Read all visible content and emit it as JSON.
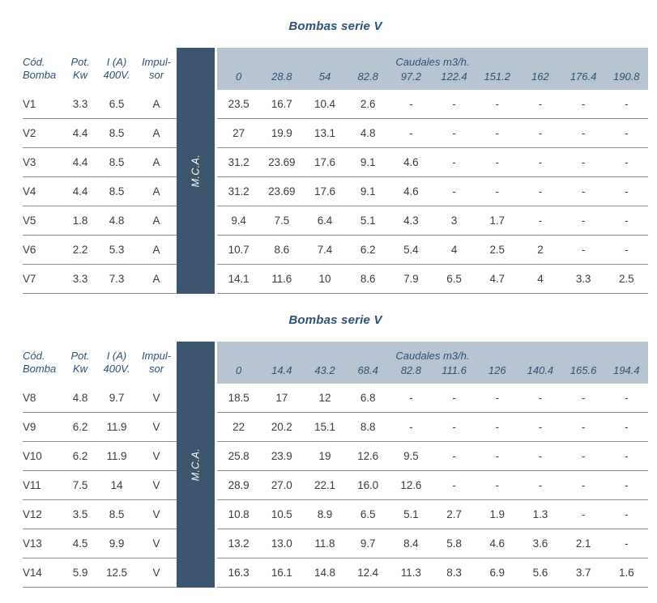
{
  "colors": {
    "accent_blue": "#2d5276",
    "dark_column": "#3c566e",
    "header_band": "#b7c4d1",
    "row_line": "#8f8f8f",
    "cell_text": "#3c3c3c"
  },
  "tables": [
    {
      "title": "Bombas serie V",
      "left_headers": [
        [
          "Cód.",
          "Bomba"
        ],
        [
          "Pot.",
          "Kw"
        ],
        [
          "I (A)",
          "400V."
        ],
        [
          "Impul-",
          "sor"
        ]
      ],
      "vertical_label": "M.C.A.",
      "flow_header": "Caudales m3/h.",
      "flow_columns": [
        "0",
        "28.8",
        "54",
        "82.8",
        "97.2",
        "122.4",
        "151.2",
        "162",
        "176.4",
        "190.8"
      ],
      "rows": [
        {
          "code": "V1",
          "power_kw": "3.3",
          "current_a": "6.5",
          "impeller": "A",
          "values": [
            "23.5",
            "16.7",
            "10.4",
            "2.6",
            "-",
            "-",
            "-",
            "-",
            "-",
            "-"
          ]
        },
        {
          "code": "V2",
          "power_kw": "4.4",
          "current_a": "8.5",
          "impeller": "A",
          "values": [
            "27",
            "19.9",
            "13.1",
            "4.8",
            "-",
            "-",
            "-",
            "-",
            "-",
            "-"
          ]
        },
        {
          "code": "V3",
          "power_kw": "4.4",
          "current_a": "8.5",
          "impeller": "A",
          "values": [
            "31.2",
            "23.69",
            "17.6",
            "9.1",
            "4.6",
            "-",
            "-",
            "-",
            "-",
            "-"
          ]
        },
        {
          "code": "V4",
          "power_kw": "4.4",
          "current_a": "8.5",
          "impeller": "A",
          "values": [
            "31.2",
            "23.69",
            "17.6",
            "9.1",
            "4.6",
            "-",
            "-",
            "-",
            "-",
            "-"
          ]
        },
        {
          "code": "V5",
          "power_kw": "1.8",
          "current_a": "4.8",
          "impeller": "A",
          "values": [
            "9.4",
            "7.5",
            "6.4",
            "5.1",
            "4.3",
            "3",
            "1.7",
            "-",
            "-",
            "-"
          ]
        },
        {
          "code": "V6",
          "power_kw": "2.2",
          "current_a": "5.3",
          "impeller": "A",
          "values": [
            "10.7",
            "8.6",
            "7.4",
            "6.2",
            "5.4",
            "4",
            "2.5",
            "2",
            "-",
            "-"
          ]
        },
        {
          "code": "V7",
          "power_kw": "3.3",
          "current_a": "7.3",
          "impeller": "A",
          "values": [
            "14.1",
            "11.6",
            "10",
            "8.6",
            "7.9",
            "6.5",
            "4.7",
            "4",
            "3.3",
            "2.5"
          ]
        }
      ]
    },
    {
      "title": "Bombas serie V",
      "left_headers": [
        [
          "Cód.",
          "Bomba"
        ],
        [
          "Pot.",
          "Kw"
        ],
        [
          "I (A)",
          "400V."
        ],
        [
          "Impul-",
          "sor"
        ]
      ],
      "vertical_label": "M.C.A.",
      "flow_header": "Caudales m3/h.",
      "flow_columns": [
        "0",
        "14.4",
        "43.2",
        "68.4",
        "82.8",
        "111.6",
        "126",
        "140.4",
        "165.6",
        "194.4"
      ],
      "rows": [
        {
          "code": "V8",
          "power_kw": "4.8",
          "current_a": "9.7",
          "impeller": "V",
          "values": [
            "18.5",
            "17",
            "12",
            "6.8",
            "-",
            "-",
            "-",
            "-",
            "-",
            "-"
          ]
        },
        {
          "code": "V9",
          "power_kw": "6.2",
          "current_a": "11.9",
          "impeller": "V",
          "values": [
            "22",
            "20.2",
            "15.1",
            "8.8",
            "-",
            "-",
            "-",
            "-",
            "-",
            "-"
          ]
        },
        {
          "code": "V10",
          "power_kw": "6.2",
          "current_a": "11.9",
          "impeller": "V",
          "values": [
            "25.8",
            "23.9",
            "19",
            "12.6",
            "9.5",
            "-",
            "-",
            "-",
            "-",
            "-"
          ]
        },
        {
          "code": "V11",
          "power_kw": "7.5",
          "current_a": "14",
          "impeller": "V",
          "values": [
            "28.9",
            "27.0",
            "22.1",
            "16.0",
            "12.6",
            "-",
            "-",
            "-",
            "-",
            "-"
          ]
        },
        {
          "code": "V12",
          "power_kw": "3.5",
          "current_a": "8.5",
          "impeller": "V",
          "values": [
            "10.8",
            "10.5",
            "8.9",
            "6.5",
            "5.1",
            "2.7",
            "1.9",
            "1.3",
            "-",
            "-"
          ]
        },
        {
          "code": "V13",
          "power_kw": "4.5",
          "current_a": "9.9",
          "impeller": "V",
          "values": [
            "13.2",
            "13.0",
            "11.8",
            "9.7",
            "8.4",
            "5.8",
            "4.6",
            "3.6",
            "2.1",
            "-"
          ]
        },
        {
          "code": "V14",
          "power_kw": "5.9",
          "current_a": "12.5",
          "impeller": "V",
          "values": [
            "16.3",
            "16.1",
            "14.8",
            "12.4",
            "11.3",
            "8.3",
            "6.9",
            "5.6",
            "3.7",
            "1.6"
          ]
        }
      ]
    }
  ]
}
